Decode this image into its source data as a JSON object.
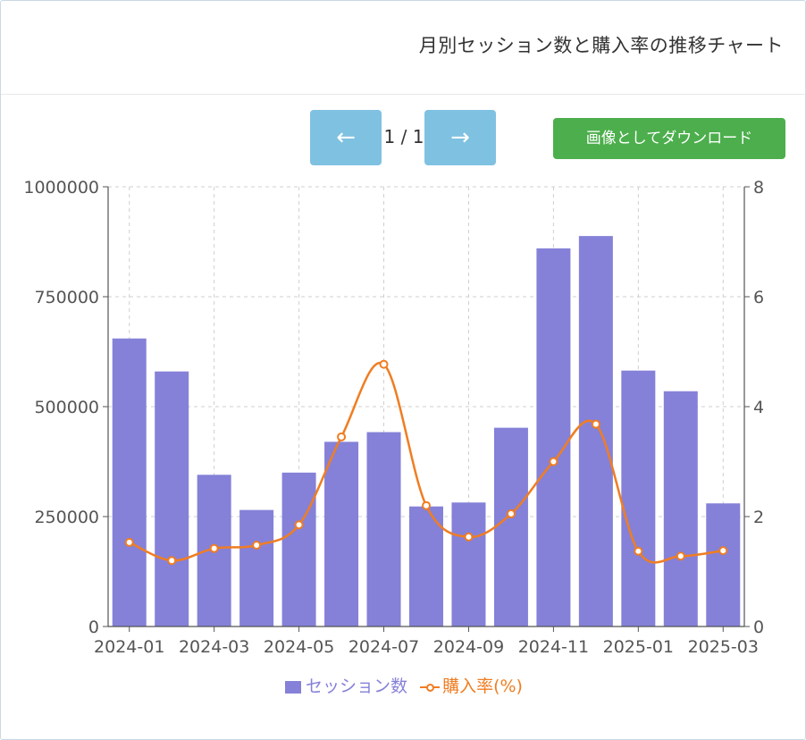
{
  "header": {
    "title": "月別セッション数と購入率の推移チャート"
  },
  "toolbar": {
    "prev_label": "←",
    "next_label": "→",
    "page_indicator": "1 / 1",
    "download_label": "画像としてダウンロード"
  },
  "colors": {
    "bar": "#8581d8",
    "line": "#f07d22",
    "nav_button": "#7fc1e1",
    "download_button": "#4cae4c"
  },
  "chart_data": {
    "type": "bar",
    "categories": [
      "2024-01",
      "2024-02",
      "2024-03",
      "2024-04",
      "2024-05",
      "2024-06",
      "2024-07",
      "2024-08",
      "2024-09",
      "2024-10",
      "2024-11",
      "2024-12",
      "2025-01",
      "2025-02",
      "2025-03"
    ],
    "x_tick_labels": [
      "2024-01",
      "2024-03",
      "2024-05",
      "2024-07",
      "2024-09",
      "2024-11",
      "2025-01",
      "2025-03"
    ],
    "series": [
      {
        "name": "セッション数",
        "type": "bar",
        "axis": "left",
        "values": [
          655000,
          580000,
          345000,
          265000,
          350000,
          420000,
          442000,
          273000,
          282000,
          452000,
          860000,
          888000,
          582000,
          535000,
          280000
        ]
      },
      {
        "name": "購入率(%)",
        "type": "line",
        "axis": "right",
        "values": [
          1.53,
          1.2,
          1.42,
          1.48,
          1.85,
          3.45,
          4.77,
          2.2,
          1.63,
          2.05,
          3.0,
          3.68,
          1.37,
          1.28,
          1.38
        ]
      }
    ],
    "y_left": {
      "range": [
        0,
        1000000
      ],
      "ticks": [
        "0",
        "250000",
        "500000",
        "750000",
        "1000000"
      ]
    },
    "y_right": {
      "range": [
        0,
        8
      ],
      "ticks": [
        "0",
        "2",
        "4",
        "6",
        "8"
      ]
    },
    "grid": true,
    "legend_position": "bottom"
  }
}
